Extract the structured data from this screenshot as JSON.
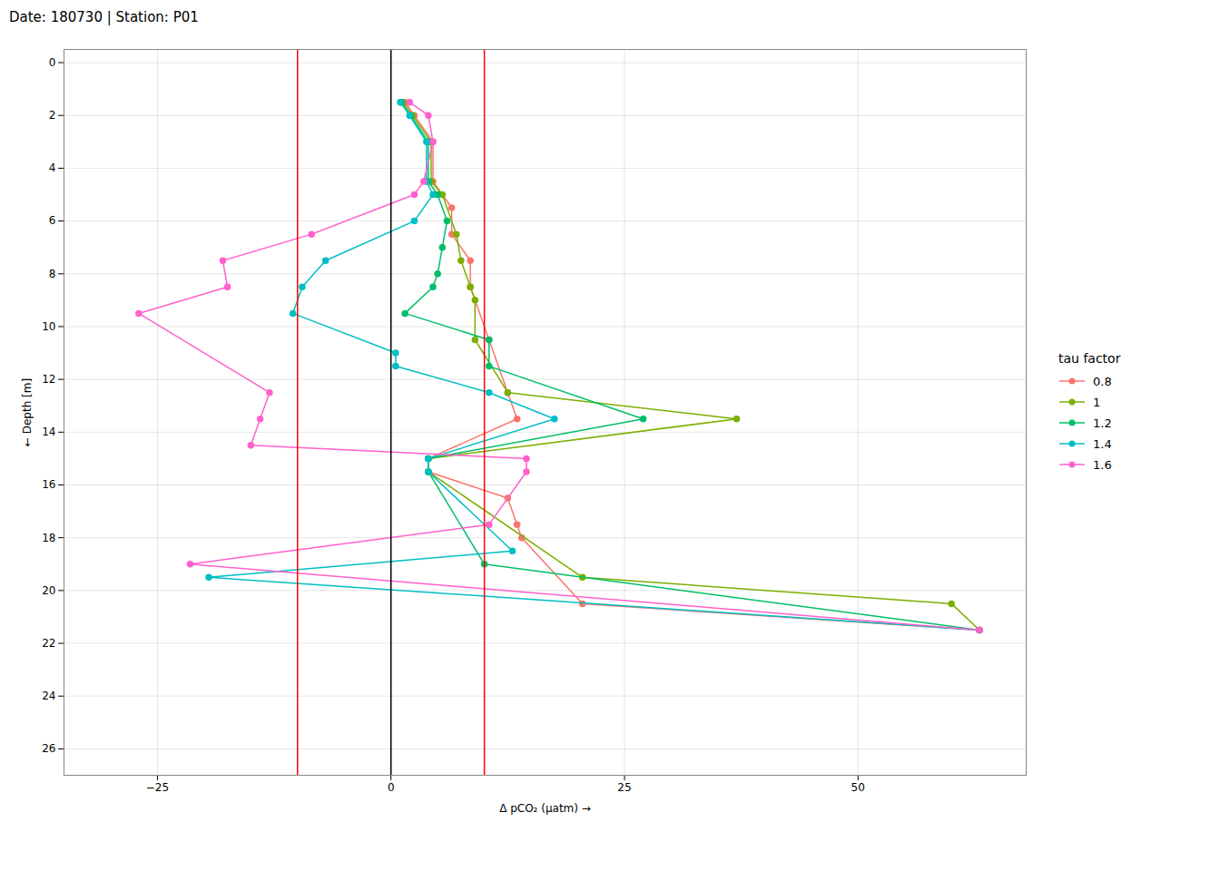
{
  "chart_data": {
    "type": "line",
    "title": "Date: 180730 | Station: P01",
    "xlabel": "Δ pCO₂ (µatm)",
    "ylabel": "Depth [m]",
    "legend_title": "tau factor",
    "legend": "right",
    "grid": true,
    "marker": "circle",
    "xlim": [
      -35,
      68
    ],
    "ylim": [
      27,
      -0.5
    ],
    "xticks": [
      -25,
      0,
      25,
      50
    ],
    "yticks": [
      0,
      2,
      4,
      6,
      8,
      10,
      12,
      14,
      16,
      18,
      20,
      22,
      24,
      26
    ],
    "vlines": [
      {
        "x": 0,
        "color": "black"
      },
      {
        "x": -10,
        "color": "red"
      },
      {
        "x": 10,
        "color": "red"
      }
    ],
    "series": [
      {
        "name": "0.8",
        "color": "#F8766D",
        "values": [
          1.5,
          2.0,
          3.0,
          4.5,
          5.5,
          6.5,
          7.5,
          8.5,
          10.5,
          12.5,
          13.5,
          15.0,
          15.5,
          16.5,
          17.5,
          18.0,
          20.5,
          21.5
        ],
        "x": [
          1.5,
          2.5,
          4.5,
          4.5,
          6.5,
          6.5,
          8.5,
          8.5,
          10.5,
          12.5,
          13.5,
          4.0,
          4.0,
          12.5,
          13.5,
          14.0,
          20.5,
          63.0
        ]
      },
      {
        "name": "1",
        "color": "#7CAE00",
        "values": [
          1.5,
          2.0,
          3.0,
          4.5,
          5.0,
          6.5,
          7.5,
          8.5,
          9.0,
          10.5,
          12.5,
          13.5,
          15.0,
          15.5,
          19.5,
          20.5,
          21.5
        ],
        "x": [
          1.3,
          2.3,
          4.3,
          4.3,
          5.5,
          7.0,
          7.5,
          8.5,
          9.0,
          9.0,
          12.5,
          37.0,
          4.0,
          4.0,
          20.5,
          60.0,
          63.0
        ]
      },
      {
        "name": "1.2",
        "color": "#00BE67",
        "values": [
          1.5,
          2.0,
          3.0,
          4.5,
          5.0,
          6.0,
          7.0,
          8.0,
          8.5,
          9.5,
          10.5,
          11.5,
          13.5,
          15.0,
          15.5,
          19.0,
          21.5
        ],
        "x": [
          1.1,
          2.1,
          4.0,
          4.0,
          5.0,
          6.0,
          5.5,
          5.0,
          4.5,
          1.5,
          10.5,
          10.5,
          27.0,
          4.0,
          4.0,
          10.0,
          63.0
        ]
      },
      {
        "name": "1.4",
        "color": "#00BFC4",
        "values": [
          1.5,
          2.0,
          3.0,
          4.5,
          5.0,
          6.0,
          7.5,
          8.5,
          9.5,
          11.0,
          11.5,
          12.5,
          13.5,
          15.0,
          15.5,
          18.5,
          19.5,
          21.5
        ],
        "x": [
          1.0,
          2.0,
          3.8,
          3.8,
          4.5,
          2.5,
          -7.0,
          -9.5,
          -10.5,
          0.5,
          0.5,
          10.5,
          17.5,
          4.0,
          4.0,
          13.0,
          -19.5,
          63.0
        ]
      },
      {
        "name": "1.6",
        "color": "#FF61CC",
        "values": [
          1.5,
          2.0,
          3.0,
          4.5,
          5.0,
          6.5,
          7.5,
          8.5,
          9.5,
          12.5,
          13.5,
          14.5,
          15.0,
          15.5,
          17.5,
          19.0,
          21.5
        ],
        "x": [
          2.0,
          4.0,
          4.5,
          3.5,
          2.5,
          -8.5,
          -18.0,
          -17.5,
          -27.0,
          -13.0,
          -14.0,
          -15.0,
          14.5,
          14.5,
          10.5,
          -21.5,
          63.0
        ]
      }
    ]
  }
}
